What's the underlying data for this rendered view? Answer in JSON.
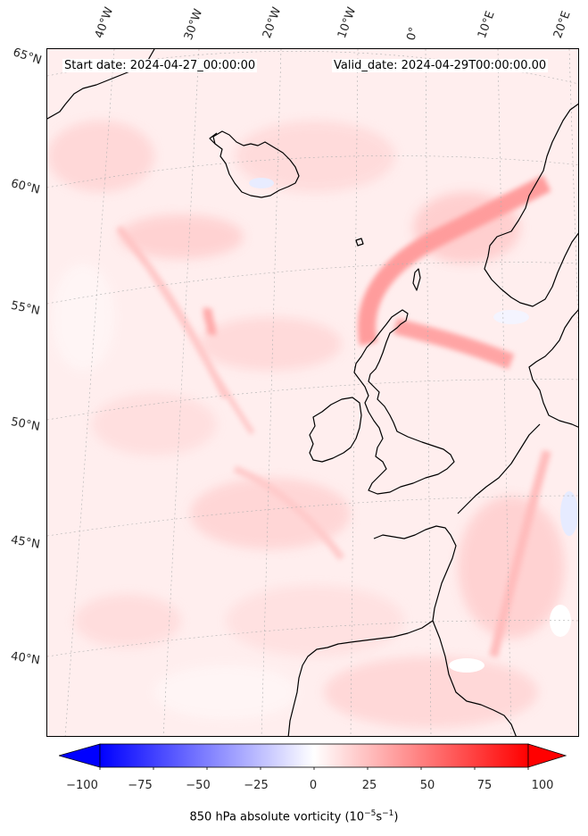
{
  "header": {
    "start_date": "Start date: 2024-04-27_00:00:00",
    "valid_date": "Valid_date: 2024-04-29T00:00:00.00"
  },
  "lon_labels": [
    "40°W",
    "30°W",
    "20°W",
    "10°W",
    "0°",
    "10°E",
    "20°E"
  ],
  "lat_labels": [
    "65°N",
    "60°N",
    "55°N",
    "50°N",
    "45°N",
    "40°N"
  ],
  "colorbar": {
    "ticks": [
      "−100",
      "−75",
      "−50",
      "−25",
      "0",
      "25",
      "50",
      "75",
      "100"
    ],
    "label_prefix": "850 hPa absolute vorticity (10",
    "label_exp1": "−5",
    "label_mid": "s",
    "label_exp2": "−1",
    "label_suffix": ")",
    "min": -100,
    "max": 100,
    "colors": {
      "negative": "#0000ff",
      "zero": "#ffffff",
      "positive": "#ff0000"
    }
  },
  "colors": {
    "coastline": "#000000",
    "field_base": "#fff1f1",
    "field_band": "#ff9a9a",
    "gridline": "#b0b0b0"
  }
}
